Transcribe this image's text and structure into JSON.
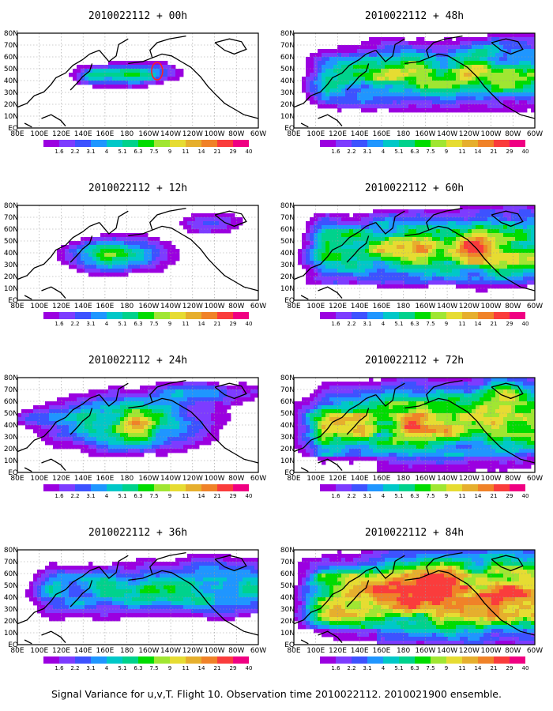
{
  "figure": {
    "caption": "Signal Variance for u,v,T. Flight 10. Observation time 2010022112. 2010021900 ensemble."
  },
  "colorbar": {
    "labels": [
      "1.6",
      "2.2",
      "3.1",
      "4",
      "5.1",
      "6.3",
      "7.5",
      "9",
      "11",
      "14",
      "21",
      "29",
      "40"
    ],
    "colors": [
      "#9b00e0",
      "#7d3cff",
      "#3d52ff",
      "#1f96ff",
      "#00c8c8",
      "#00d28c",
      "#00dc00",
      "#a0e632",
      "#e6dc32",
      "#e6af2d",
      "#f08228",
      "#fa3c3c",
      "#f00082"
    ]
  },
  "chart_data": [
    {
      "type": "heatmap",
      "title": "2010022112 + 00h",
      "forecast_hour": 0,
      "xticks": [
        "80E",
        "100E",
        "120E",
        "140E",
        "160E",
        "180",
        "160W",
        "140W",
        "120W",
        "100W",
        "80W",
        "60W"
      ],
      "yticks": [
        "EQ",
        "10N",
        "20N",
        "30N",
        "40N",
        "50N",
        "60N",
        "70N",
        "80N"
      ],
      "xlim": [
        "80E",
        "60W"
      ],
      "ylim": [
        "EQ",
        "80N"
      ],
      "grid": true
    },
    {
      "type": "heatmap",
      "title": "2010022112 + 12h",
      "forecast_hour": 12,
      "xticks": [
        "80E",
        "100E",
        "120E",
        "140E",
        "160E",
        "180",
        "160W",
        "140W",
        "120W",
        "100W",
        "80W",
        "60W"
      ],
      "yticks": [
        "EQ",
        "10N",
        "20N",
        "30N",
        "40N",
        "50N",
        "60N",
        "70N",
        "80N"
      ],
      "xlim": [
        "80E",
        "60W"
      ],
      "ylim": [
        "EQ",
        "80N"
      ],
      "grid": true
    },
    {
      "type": "heatmap",
      "title": "2010022112 + 24h",
      "forecast_hour": 24,
      "xticks": [
        "80E",
        "100E",
        "120E",
        "140E",
        "160E",
        "180",
        "160W",
        "140W",
        "120W",
        "100W",
        "80W",
        "60W"
      ],
      "yticks": [
        "EQ",
        "10N",
        "20N",
        "30N",
        "40N",
        "50N",
        "60N",
        "70N",
        "80N"
      ],
      "xlim": [
        "80E",
        "60W"
      ],
      "ylim": [
        "EQ",
        "80N"
      ],
      "grid": true
    },
    {
      "type": "heatmap",
      "title": "2010022112 + 36h",
      "forecast_hour": 36,
      "xticks": [
        "80E",
        "100E",
        "120E",
        "140E",
        "160E",
        "180",
        "160W",
        "140W",
        "120W",
        "100W",
        "80W",
        "60W"
      ],
      "yticks": [
        "EQ",
        "10N",
        "20N",
        "30N",
        "40N",
        "50N",
        "60N",
        "70N",
        "80N"
      ],
      "xlim": [
        "80E",
        "60W"
      ],
      "ylim": [
        "EQ",
        "80N"
      ],
      "grid": true
    },
    {
      "type": "heatmap",
      "title": "2010022112 + 48h",
      "forecast_hour": 48,
      "xticks": [
        "80E",
        "100E",
        "120E",
        "140E",
        "160E",
        "180",
        "160W",
        "140W",
        "120W",
        "100W",
        "80W",
        "60W"
      ],
      "yticks": [
        "EQ",
        "10N",
        "20N",
        "30N",
        "40N",
        "50N",
        "60N",
        "70N",
        "80N"
      ],
      "xlim": [
        "80E",
        "60W"
      ],
      "ylim": [
        "EQ",
        "80N"
      ],
      "grid": true
    },
    {
      "type": "heatmap",
      "title": "2010022112 + 60h",
      "forecast_hour": 60,
      "xticks": [
        "80E",
        "100E",
        "120E",
        "140E",
        "160E",
        "180",
        "160W",
        "140W",
        "120W",
        "100W",
        "80W",
        "60W"
      ],
      "yticks": [
        "EQ",
        "10N",
        "20N",
        "30N",
        "40N",
        "50N",
        "60N",
        "70N",
        "80N"
      ],
      "xlim": [
        "80E",
        "60W"
      ],
      "ylim": [
        "EQ",
        "80N"
      ],
      "grid": true
    },
    {
      "type": "heatmap",
      "title": "2010022112 + 72h",
      "forecast_hour": 72,
      "xticks": [
        "80E",
        "100E",
        "120E",
        "140E",
        "160E",
        "180",
        "160W",
        "140W",
        "120W",
        "100W",
        "80W",
        "60W"
      ],
      "yticks": [
        "EQ",
        "10N",
        "20N",
        "30N",
        "40N",
        "50N",
        "60N",
        "70N",
        "80N"
      ],
      "xlim": [
        "80E",
        "60W"
      ],
      "ylim": [
        "EQ",
        "80N"
      ],
      "grid": true
    },
    {
      "type": "heatmap",
      "title": "2010022112 + 84h",
      "forecast_hour": 84,
      "xticks": [
        "80E",
        "100E",
        "120E",
        "140E",
        "160E",
        "180",
        "160W",
        "140W",
        "120W",
        "100W",
        "80W",
        "60W"
      ],
      "yticks": [
        "EQ",
        "10N",
        "20N",
        "30N",
        "40N",
        "50N",
        "60N",
        "70N",
        "80N"
      ],
      "xlim": [
        "80E",
        "60W"
      ],
      "ylim": [
        "EQ",
        "80N"
      ],
      "grid": true
    }
  ]
}
